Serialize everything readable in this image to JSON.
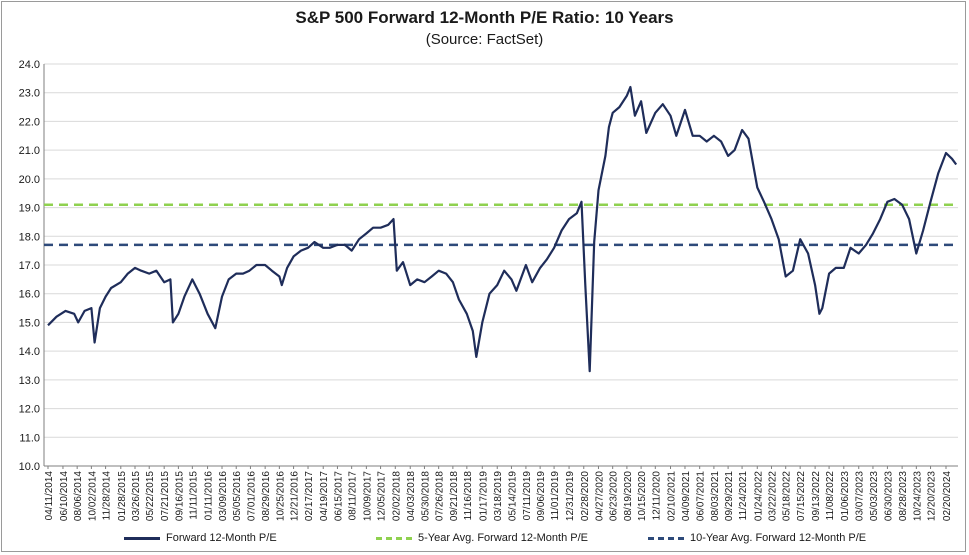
{
  "chart_data": {
    "type": "line",
    "title": "S&P 500 Forward 12-Month P/E Ratio: 10 Years",
    "subtitle": "(Source: FactSet)",
    "ylim": [
      10.0,
      24.0
    ],
    "y_ticks": [
      "10.0",
      "11.0",
      "12.0",
      "13.0",
      "14.0",
      "15.0",
      "16.0",
      "17.0",
      "18.0",
      "19.0",
      "20.0",
      "21.0",
      "22.0",
      "23.0",
      "24.0"
    ],
    "x_tick_labels": [
      "04/11/2014",
      "06/10/2014",
      "08/06/2014",
      "10/02/2014",
      "11/28/2014",
      "01/28/2015",
      "03/26/2015",
      "05/22/2015",
      "07/21/2015",
      "09/16/2015",
      "11/11/2015",
      "01/11/2016",
      "03/09/2016",
      "05/05/2016",
      "07/01/2016",
      "08/29/2016",
      "10/25/2016",
      "12/21/2016",
      "02/17/2017",
      "04/19/2017",
      "06/15/2017",
      "08/11/2017",
      "10/09/2017",
      "12/05/2017",
      "02/02/2018",
      "04/03/2018",
      "05/30/2018",
      "07/26/2018",
      "09/21/2018",
      "11/16/2018",
      "01/17/2019",
      "03/18/2019",
      "05/14/2019",
      "07/11/2019",
      "09/06/2019",
      "11/01/2019",
      "12/31/2019",
      "02/28/2020",
      "04/27/2020",
      "06/23/2020",
      "08/19/2020",
      "10/15/2020",
      "12/11/2020",
      "02/10/2021",
      "04/09/2021",
      "06/07/2021",
      "08/03/2021",
      "09/29/2021",
      "11/24/2021",
      "01/24/2022",
      "03/22/2022",
      "05/18/2022",
      "07/15/2022",
      "09/13/2022",
      "11/08/2022",
      "01/06/2023",
      "03/07/2023",
      "05/03/2023",
      "06/30/2023",
      "08/28/2023",
      "10/24/2023",
      "12/20/2023",
      "02/20/2024"
    ],
    "series": [
      {
        "name": "Forward 12-Month P/E",
        "color": "#1f2d5a",
        "x": [
          "04/11/2014",
          "05/15/2014",
          "06/20/2014",
          "07/25/2014",
          "08/10/2014",
          "09/05/2014",
          "10/02/2014",
          "10/15/2014",
          "11/05/2014",
          "11/28/2014",
          "12/20/2014",
          "01/28/2015",
          "02/25/2015",
          "03/26/2015",
          "04/20/2015",
          "05/22/2015",
          "06/20/2015",
          "07/21/2015",
          "08/15/2015",
          "08/25/2015",
          "09/16/2015",
          "10/10/2015",
          "11/11/2015",
          "12/10/2015",
          "01/11/2016",
          "02/11/2016",
          "03/09/2016",
          "04/05/2016",
          "05/05/2016",
          "06/01/2016",
          "06/27/2016",
          "07/25/2016",
          "08/29/2016",
          "09/25/2016",
          "10/25/2016",
          "11/04/2016",
          "11/25/2016",
          "12/21/2016",
          "01/20/2017",
          "02/17/2017",
          "03/15/2017",
          "04/19/2017",
          "05/15/2017",
          "06/15/2017",
          "07/15/2017",
          "08/11/2017",
          "09/10/2017",
          "10/09/2017",
          "11/05/2017",
          "12/05/2017",
          "01/05/2018",
          "01/26/2018",
          "02/08/2018",
          "03/05/2018",
          "04/03/2018",
          "05/01/2018",
          "05/30/2018",
          "06/28/2018",
          "07/26/2018",
          "08/25/2018",
          "09/21/2018",
          "10/15/2018",
          "11/16/2018",
          "12/10/2018",
          "12/24/2018",
          "01/17/2019",
          "02/15/2019",
          "03/18/2019",
          "04/15/2019",
          "05/14/2019",
          "06/03/2019",
          "07/11/2019",
          "08/05/2019",
          "09/06/2019",
          "10/03/2019",
          "11/01/2019",
          "12/01/2019",
          "12/31/2019",
          "01/31/2020",
          "02/19/2020",
          "03/05/2020",
          "03/23/2020",
          "04/10/2020",
          "04/27/2020",
          "05/25/2020",
          "06/08/2020",
          "06/23/2020",
          "07/20/2020",
          "08/19/2020",
          "09/02/2020",
          "09/20/2020",
          "10/15/2020",
          "11/05/2020",
          "12/11/2020",
          "01/10/2021",
          "02/10/2021",
          "03/05/2021",
          "04/09/2021",
          "05/10/2021",
          "06/07/2021",
          "07/05/2021",
          "08/03/2021",
          "09/01/2021",
          "09/29/2021",
          "10/25/2021",
          "11/24/2021",
          "12/20/2021",
          "01/24/2022",
          "02/20/2022",
          "03/22/2022",
          "04/20/2022",
          "05/18/2022",
          "06/16/2022",
          "07/15/2022",
          "08/16/2022",
          "09/13/2022",
          "09/30/2022",
          "10/12/2022",
          "11/08/2022",
          "12/05/2022",
          "01/06/2023",
          "02/02/2023",
          "03/07/2023",
          "04/05/2023",
          "05/03/2023",
          "06/01/2023",
          "06/30/2023",
          "07/28/2023",
          "08/28/2023",
          "09/25/2023",
          "10/24/2023",
          "11/20/2023",
          "12/20/2023",
          "01/20/2024",
          "02/20/2024",
          "03/15/2024",
          "04/01/2024"
        ],
        "values": [
          14.9,
          15.2,
          15.4,
          15.3,
          15.0,
          15.4,
          15.5,
          14.3,
          15.5,
          15.9,
          16.2,
          16.4,
          16.7,
          16.9,
          16.8,
          16.7,
          16.8,
          16.4,
          16.5,
          15.0,
          15.3,
          15.9,
          16.5,
          16.0,
          15.3,
          14.8,
          15.9,
          16.5,
          16.7,
          16.7,
          16.8,
          17.0,
          17.0,
          16.8,
          16.6,
          16.3,
          16.9,
          17.3,
          17.5,
          17.6,
          17.8,
          17.6,
          17.6,
          17.7,
          17.7,
          17.5,
          17.9,
          18.1,
          18.3,
          18.3,
          18.4,
          18.6,
          16.8,
          17.1,
          16.3,
          16.5,
          16.4,
          16.6,
          16.8,
          16.7,
          16.4,
          15.8,
          15.3,
          14.7,
          13.8,
          15.0,
          16.0,
          16.3,
          16.8,
          16.5,
          16.1,
          17.0,
          16.4,
          16.9,
          17.2,
          17.6,
          18.2,
          18.6,
          18.8,
          19.2,
          16.3,
          13.3,
          17.8,
          19.6,
          20.8,
          21.8,
          22.3,
          22.5,
          22.9,
          23.2,
          22.2,
          22.7,
          21.6,
          22.3,
          22.6,
          22.2,
          21.5,
          22.4,
          21.5,
          21.5,
          21.3,
          21.5,
          21.3,
          20.8,
          21.0,
          21.7,
          21.4,
          19.7,
          19.2,
          18.6,
          17.9,
          16.6,
          16.8,
          17.9,
          17.4,
          16.3,
          15.3,
          15.5,
          16.7,
          16.9,
          16.9,
          17.6,
          17.4,
          17.7,
          18.1,
          18.6,
          19.2,
          19.3,
          19.1,
          18.6,
          17.4,
          18.2,
          19.2,
          20.2,
          20.9,
          20.7,
          20.5
        ]
      },
      {
        "name": "5-Year Avg. Forward 12-Month P/E",
        "color": "#8fd14f",
        "constant": 19.1
      },
      {
        "name": "10-Year Avg. Forward 12-Month P/E",
        "color": "#2e4a7a",
        "constant": 17.7
      }
    ],
    "grid": "horizontal",
    "legend_position": "bottom"
  }
}
